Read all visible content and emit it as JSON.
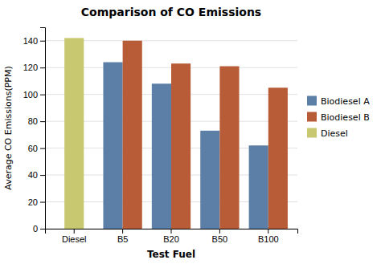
{
  "chart_data": {
    "type": "bar",
    "title": "Comparison of CO Emissions",
    "xlabel": "Test Fuel",
    "ylabel": "Average CO Emissions(PPM)",
    "categories": [
      "Diesel",
      "B5",
      "B20",
      "B50",
      "B100"
    ],
    "series": [
      {
        "name": "Biodiesel A",
        "color": "#5b7fa6",
        "values": [
          null,
          124,
          108,
          73,
          62
        ]
      },
      {
        "name": "Biodiesel B",
        "color": "#b85c38",
        "values": [
          null,
          140,
          123,
          121,
          105
        ]
      },
      {
        "name": "Diesel",
        "color": "#c8c870",
        "values": [
          142,
          null,
          null,
          null,
          null
        ]
      }
    ],
    "ylim": [
      0,
      150
    ],
    "yticks": [
      0,
      20,
      40,
      60,
      80,
      100,
      120,
      140
    ],
    "grid": true,
    "legend": "right"
  }
}
